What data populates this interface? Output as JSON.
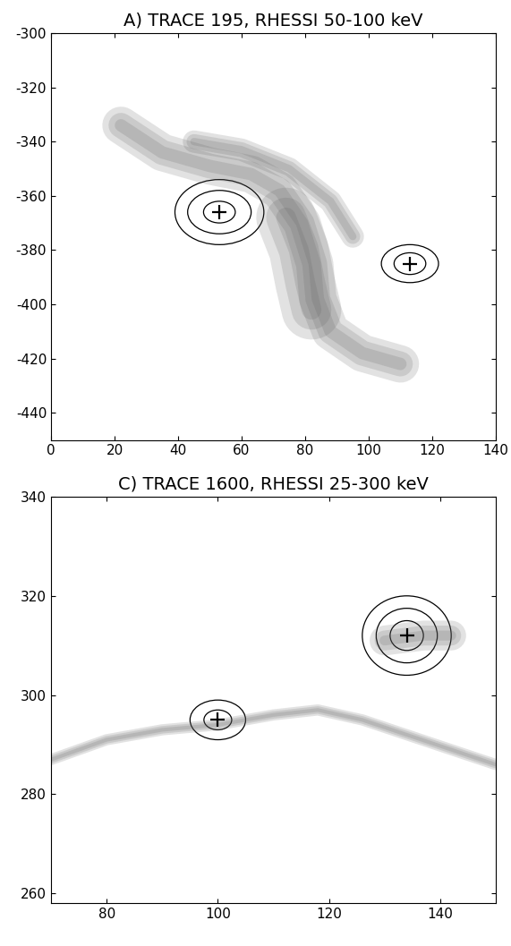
{
  "chart_data": [
    {
      "type": "image_contour",
      "title": "A) TRACE 195, RHESSI 50-100 keV",
      "xlim": [
        0,
        140
      ],
      "ylim": [
        -450,
        -300
      ],
      "xticks": [
        0,
        20,
        40,
        60,
        80,
        100,
        120,
        140
      ],
      "yticks": [
        -440,
        -420,
        -400,
        -380,
        -360,
        -340,
        -320,
        -300
      ],
      "color": "#000000",
      "marker": "+",
      "sources": [
        {
          "x": 53,
          "y": -366,
          "contours": [
            [
              5,
              4
            ],
            [
              10,
              8
            ],
            [
              14,
              12
            ]
          ]
        },
        {
          "x": 113,
          "y": -385,
          "contours": [
            [
              5,
              4
            ],
            [
              9,
              7
            ]
          ]
        }
      ],
      "emission": [
        {
          "width": 10,
          "points": [
            [
              22,
              -334
            ],
            [
              35,
              -344
            ],
            [
              50,
              -349
            ],
            [
              63,
              -352
            ],
            [
              72,
              -358
            ],
            [
              79,
              -370
            ],
            [
              83,
              -385
            ],
            [
              84,
              -398
            ],
            [
              88,
              -410
            ],
            [
              98,
              -418
            ],
            [
              110,
              -422
            ]
          ]
        },
        {
          "width": 16,
          "points": [
            [
              74,
              -368
            ],
            [
              78,
              -380
            ],
            [
              80,
              -392
            ],
            [
              82,
              -402
            ]
          ]
        },
        {
          "width": 6,
          "points": [
            [
              45,
              -340
            ],
            [
              60,
              -343
            ],
            [
              75,
              -350
            ],
            [
              88,
              -362
            ],
            [
              95,
              -375
            ]
          ]
        }
      ]
    },
    {
      "type": "image_contour",
      "title": "C) TRACE 1600, RHESSI 25-300 keV",
      "xlim": [
        70,
        150
      ],
      "ylim": [
        258,
        340
      ],
      "xticks": [
        80,
        100,
        120,
        140
      ],
      "yticks": [
        260,
        280,
        300,
        320,
        340
      ],
      "color": "#000000",
      "marker": "+",
      "sources": [
        {
          "x": 100,
          "y": 295,
          "contours": [
            [
              2.5,
              2
            ],
            [
              5,
              4
            ]
          ]
        },
        {
          "x": 134,
          "y": 312,
          "contours": [
            [
              3,
              3
            ],
            [
              5.5,
              5.5
            ],
            [
              8,
              8
            ]
          ]
        }
      ],
      "emission": [
        {
          "width": 3,
          "points": [
            [
              70,
              287
            ],
            [
              80,
              291
            ],
            [
              90,
              293
            ],
            [
              100,
              294
            ],
            [
              110,
              296
            ],
            [
              118,
              297
            ],
            [
              126,
              295
            ],
            [
              134,
              292
            ],
            [
              142,
              289
            ],
            [
              150,
              286
            ]
          ]
        },
        {
          "width": 8,
          "points": [
            [
              130,
              311
            ],
            [
              137,
              312
            ],
            [
              142,
              312
            ]
          ]
        }
      ]
    }
  ]
}
